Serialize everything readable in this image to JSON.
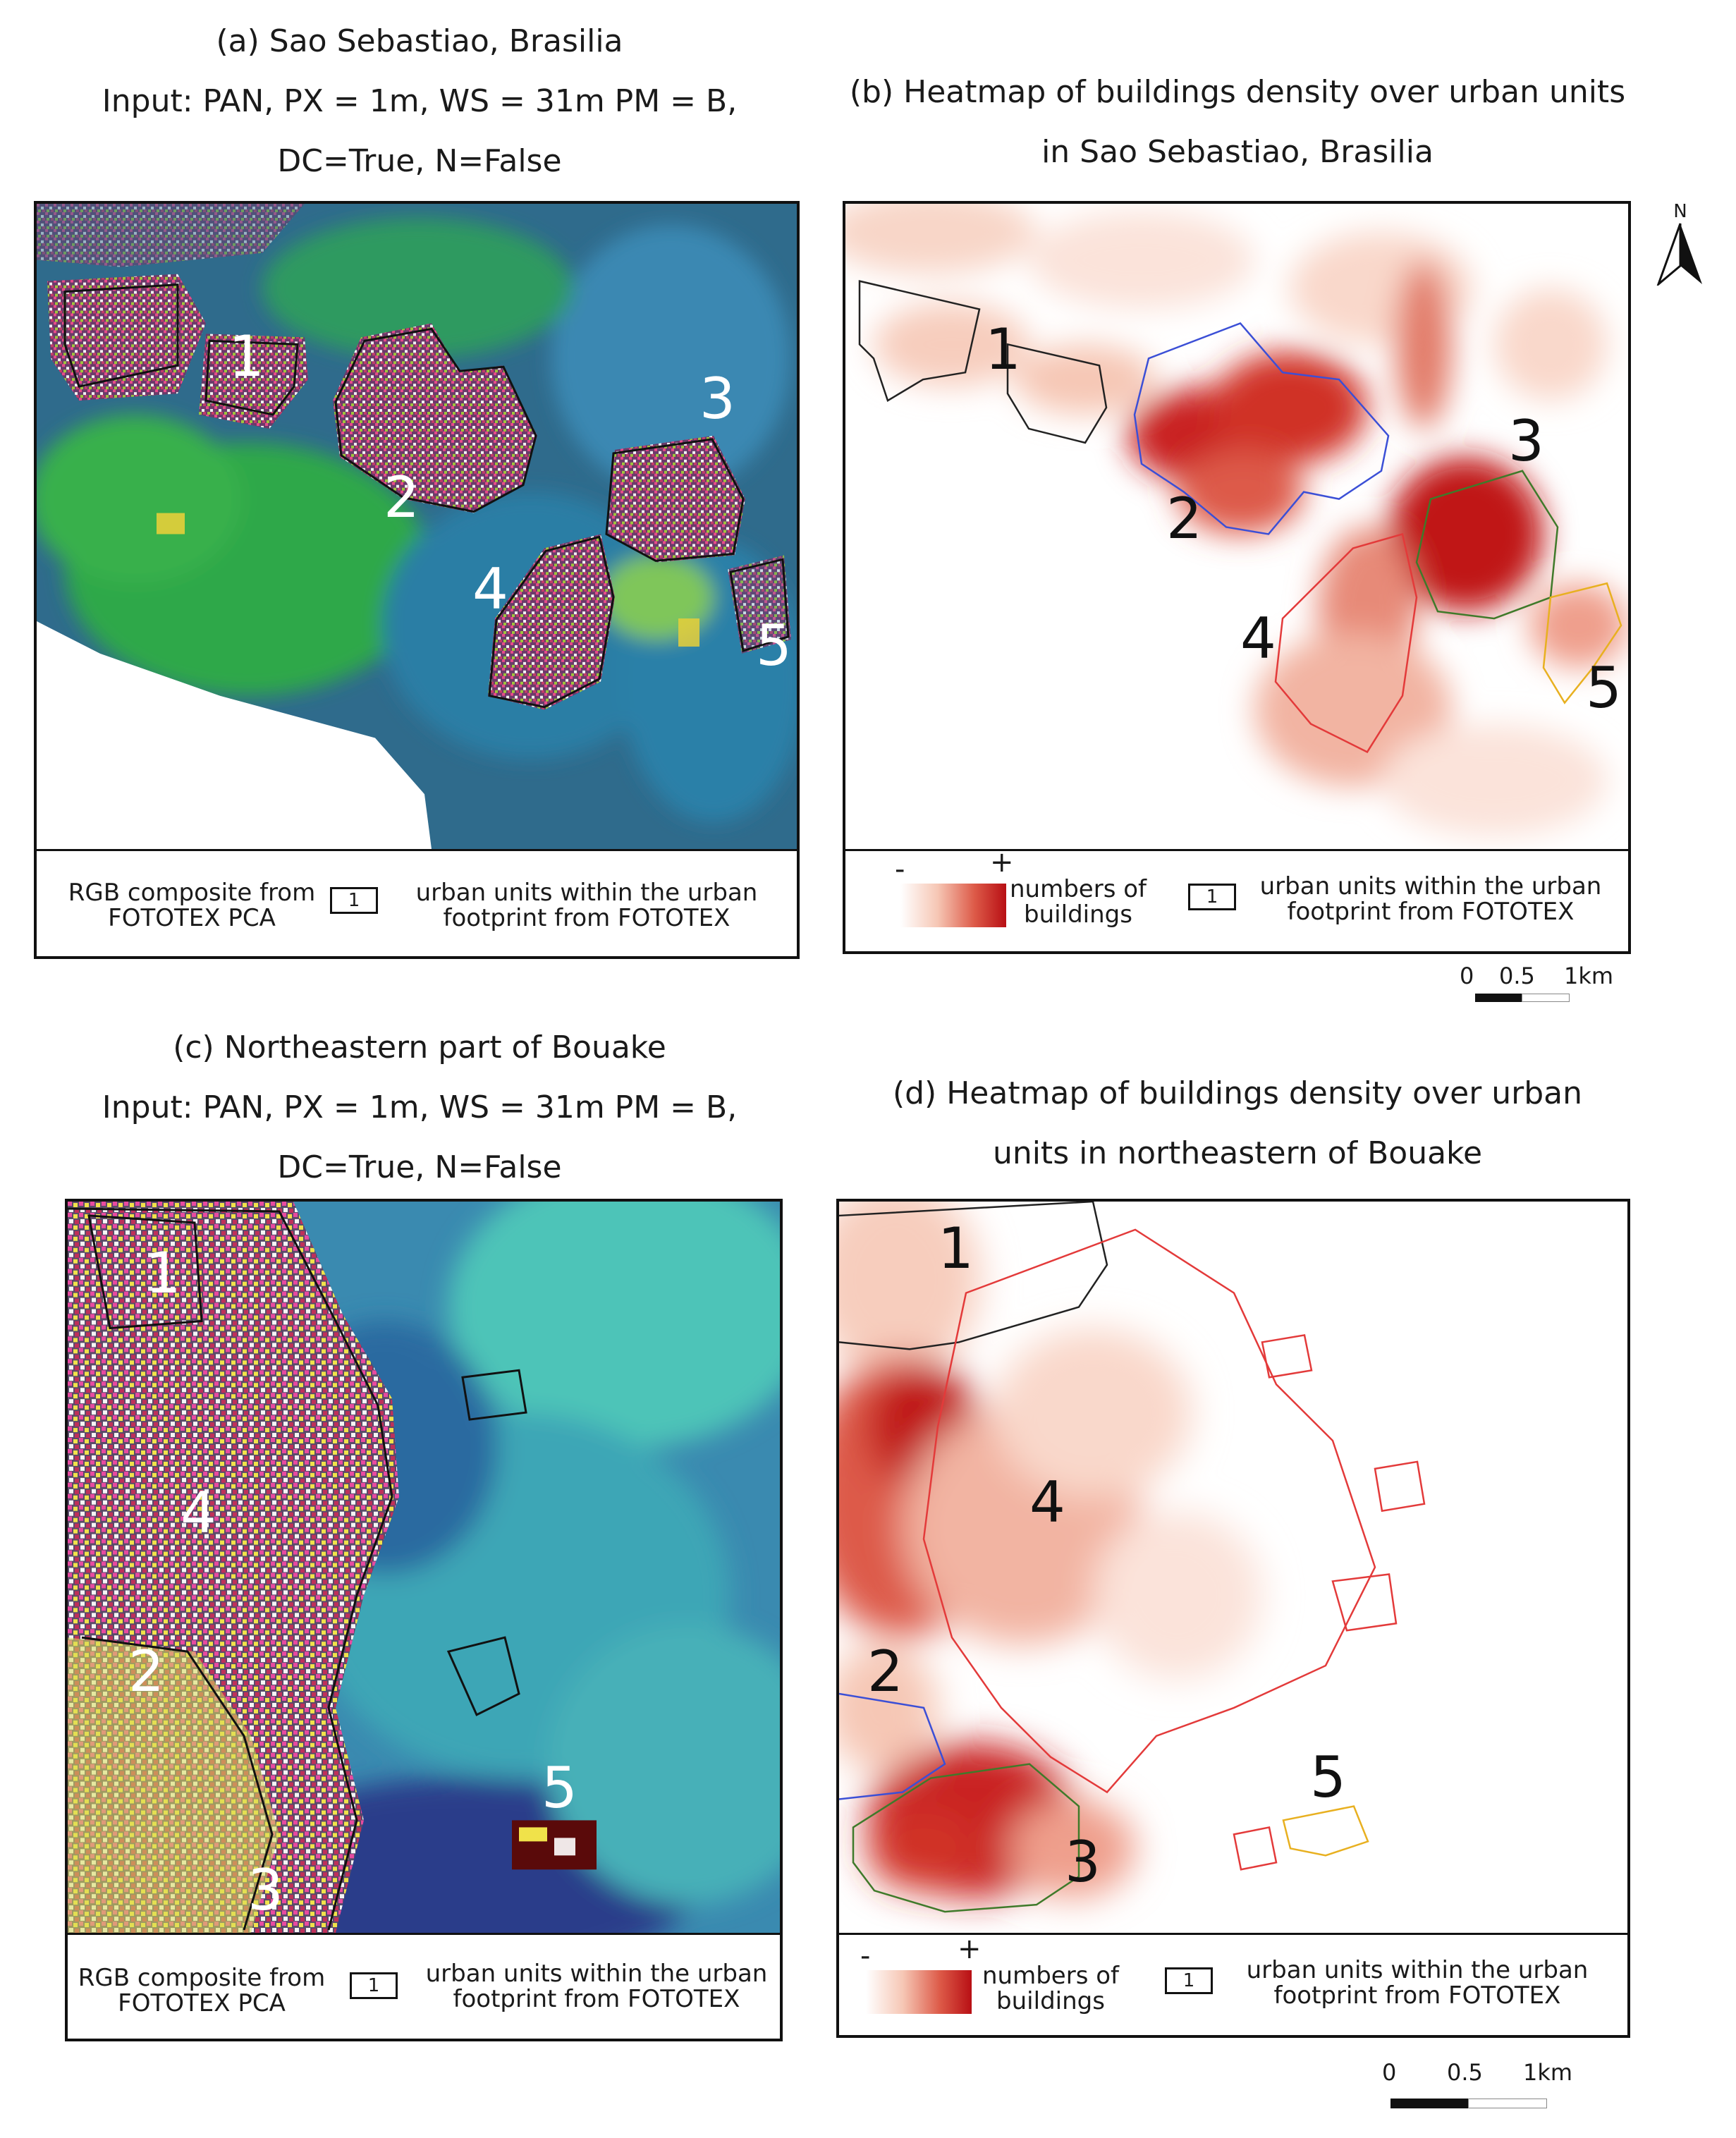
{
  "panel_a": {
    "title_line1": "(a)  Sao Sebastiao, Brasilia",
    "title_line2": "Input: PAN, PX = 1m, WS = 31m PM = B,",
    "title_line3": "DC=True, N=False",
    "labels": [
      "1",
      "2",
      "3",
      "4",
      "5"
    ],
    "legend": {
      "composite_line1": "RGB composite from",
      "composite_line2": "FOTOTEX PCA",
      "unit_box": "1",
      "units_line1": "urban units within the urban",
      "units_line2": "footprint from FOTOTEX"
    }
  },
  "panel_b": {
    "title_line1": "(b) Heatmap of buildings density over urban units",
    "title_line2": "in  Sao Sebastiao, Brasilia",
    "labels": [
      "1",
      "2",
      "3",
      "4",
      "5"
    ],
    "legend": {
      "minus": "-",
      "plus": "+",
      "density_line1": "numbers of",
      "density_line2": "buildings",
      "unit_box": "1",
      "units_line1": "urban units within the urban",
      "units_line2": "footprint from FOTOTEX"
    },
    "north": "N",
    "scale": {
      "l0": "0",
      "l1": "0.5",
      "l2": "1km"
    }
  },
  "panel_c": {
    "title_line1": "(c) Northeastern part of Bouake",
    "title_line2": "Input: PAN, PX = 1m, WS = 31m PM = B,",
    "title_line3": "DC=True, N=False",
    "labels": [
      "1",
      "2",
      "3",
      "4",
      "5"
    ],
    "legend": {
      "composite_line1": "RGB composite from",
      "composite_line2": "FOTOTEX PCA",
      "unit_box": "1",
      "units_line1": "urban units within the urban",
      "units_line2": "footprint from FOTOTEX"
    }
  },
  "panel_d": {
    "title_line1": "(d) Heatmap of buildings density over urban",
    "title_line2": "units in northeastern of Bouake",
    "labels": [
      "1",
      "2",
      "3",
      "4",
      "5"
    ],
    "legend": {
      "minus": "-",
      "plus": "+",
      "density_line1": "numbers of",
      "density_line2": "buildings",
      "unit_box": "1",
      "units_line1": "urban units within the urban",
      "units_line2": "footprint from FOTOTEX"
    },
    "scale": {
      "l0": "0",
      "l1": "0.5",
      "l2": "1km"
    }
  },
  "colors": {
    "unit_1": "#222222",
    "unit_2": "#3b4fd6",
    "unit_3": "#3f7a2a",
    "unit_4": "#e33a3a",
    "unit_5": "#e8b020",
    "heat_high": "#b80f14",
    "heat_low": "#fbe3da"
  }
}
